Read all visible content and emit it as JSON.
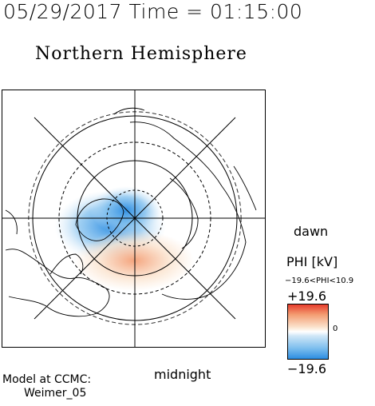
{
  "header": {
    "title": "05/29/2017 Time = 01:15:00",
    "subtitle": "Northern Hemisphere"
  },
  "map": {
    "bottom_label": "midnight",
    "right_label": "dawn",
    "colors": {
      "positive": "#e63c2c",
      "negative": "#2c8de2",
      "neutral": "#ffffff",
      "coast": "#000000",
      "grid": "#000000"
    }
  },
  "colorbar": {
    "title": "PHI [kV]",
    "range_text": "−19.6<PHI<10.9",
    "max_label": "+19.6",
    "zero_label": "0",
    "min_label": "−19.6",
    "min_value": -19.6,
    "max_value": 19.6
  },
  "credit": {
    "line1": "Model at CCMC:",
    "line2": "Weimer_05"
  }
}
